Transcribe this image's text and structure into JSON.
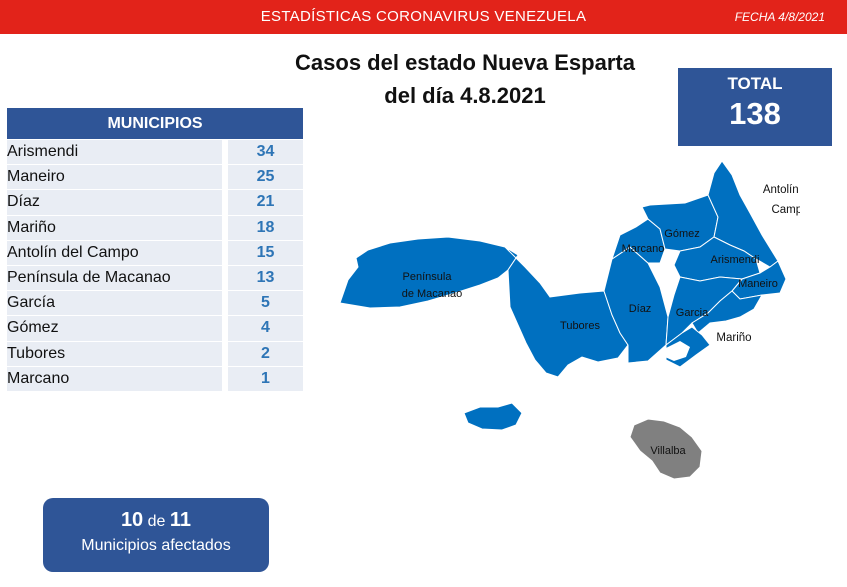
{
  "header": {
    "banner": "ESTADÍSTICAS CORONAVIRUS VENEZUELA",
    "date": "FECHA 4/8/2021"
  },
  "title": {
    "line1": "Casos del estado Nueva Esparta",
    "line2": "del día 4.8.2021"
  },
  "total": {
    "label": "TOTAL",
    "value": "138"
  },
  "table": {
    "header": "MUNICIPIOS",
    "rows": [
      {
        "name": "Arismendi",
        "value": "34"
      },
      {
        "name": "Maneiro",
        "value": "25"
      },
      {
        "name": "Díaz",
        "value": "21"
      },
      {
        "name": "Mariño",
        "value": "18"
      },
      {
        "name": "Antolín del Campo",
        "value": "15"
      },
      {
        "name": "Península de Macanao",
        "value": "13"
      },
      {
        "name": "García",
        "value": "5"
      },
      {
        "name": "Gómez",
        "value": "4"
      },
      {
        "name": "Tubores",
        "value": "2"
      },
      {
        "name": "Marcano",
        "value": "1"
      }
    ]
  },
  "affected": {
    "count": "10",
    "connector": "de",
    "total": "11",
    "label": "Municipios afectados"
  },
  "map": {
    "fill_color": "#0070c0",
    "unaffected_color": "#808080",
    "labels": {
      "macanao_1": "Península",
      "macanao_2": "de Macanao",
      "tubores": "Tubores",
      "diaz": "Díaz",
      "marcano": "Marcano",
      "gomez": "Gómez",
      "arismendi": "Arismendi",
      "maneiro": "Maneiro",
      "garcia": "Garcia",
      "antolin_1": "Antolín del",
      "antolin_2": "Campo",
      "marino": "Mariño",
      "villalba": "Villalba"
    }
  }
}
